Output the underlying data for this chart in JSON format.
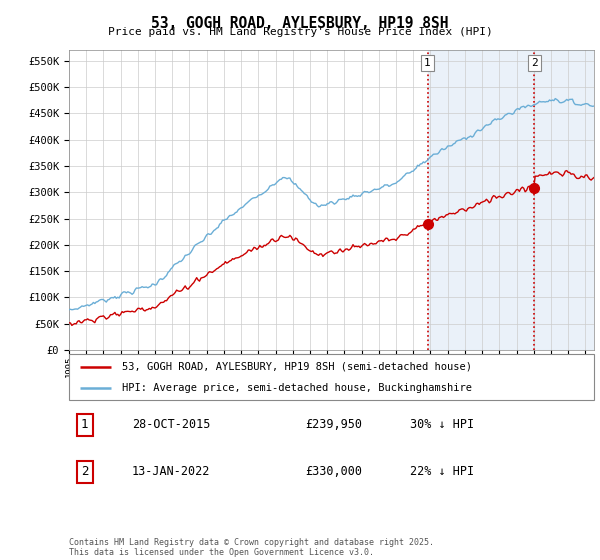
{
  "title": "53, GOGH ROAD, AYLESBURY, HP19 8SH",
  "subtitle": "Price paid vs. HM Land Registry's House Price Index (HPI)",
  "ylim": [
    0,
    570000
  ],
  "yticks": [
    0,
    50000,
    100000,
    150000,
    200000,
    250000,
    300000,
    350000,
    400000,
    450000,
    500000,
    550000
  ],
  "xlim_start": 1995.0,
  "xlim_end": 2025.5,
  "hpi_color": "#6baed6",
  "price_color": "#cc0000",
  "vline_color": "#cc0000",
  "marker1_date": 2015.83,
  "marker1_label": "1",
  "marker2_date": 2022.04,
  "marker2_label": "2",
  "sale1_price": 239950,
  "sale2_price": 330000,
  "legend_line1": "53, GOGH ROAD, AYLESBURY, HP19 8SH (semi-detached house)",
  "legend_line2": "HPI: Average price, semi-detached house, Buckinghamshire",
  "table_row1": [
    "1",
    "28-OCT-2015",
    "£239,950",
    "30% ↓ HPI"
  ],
  "table_row2": [
    "2",
    "13-JAN-2022",
    "£330,000",
    "22% ↓ HPI"
  ],
  "footer": "Contains HM Land Registry data © Crown copyright and database right 2025.\nThis data is licensed under the Open Government Licence v3.0.",
  "plot_bg_color": "#ffffff",
  "shade_color": "#dce9f5"
}
